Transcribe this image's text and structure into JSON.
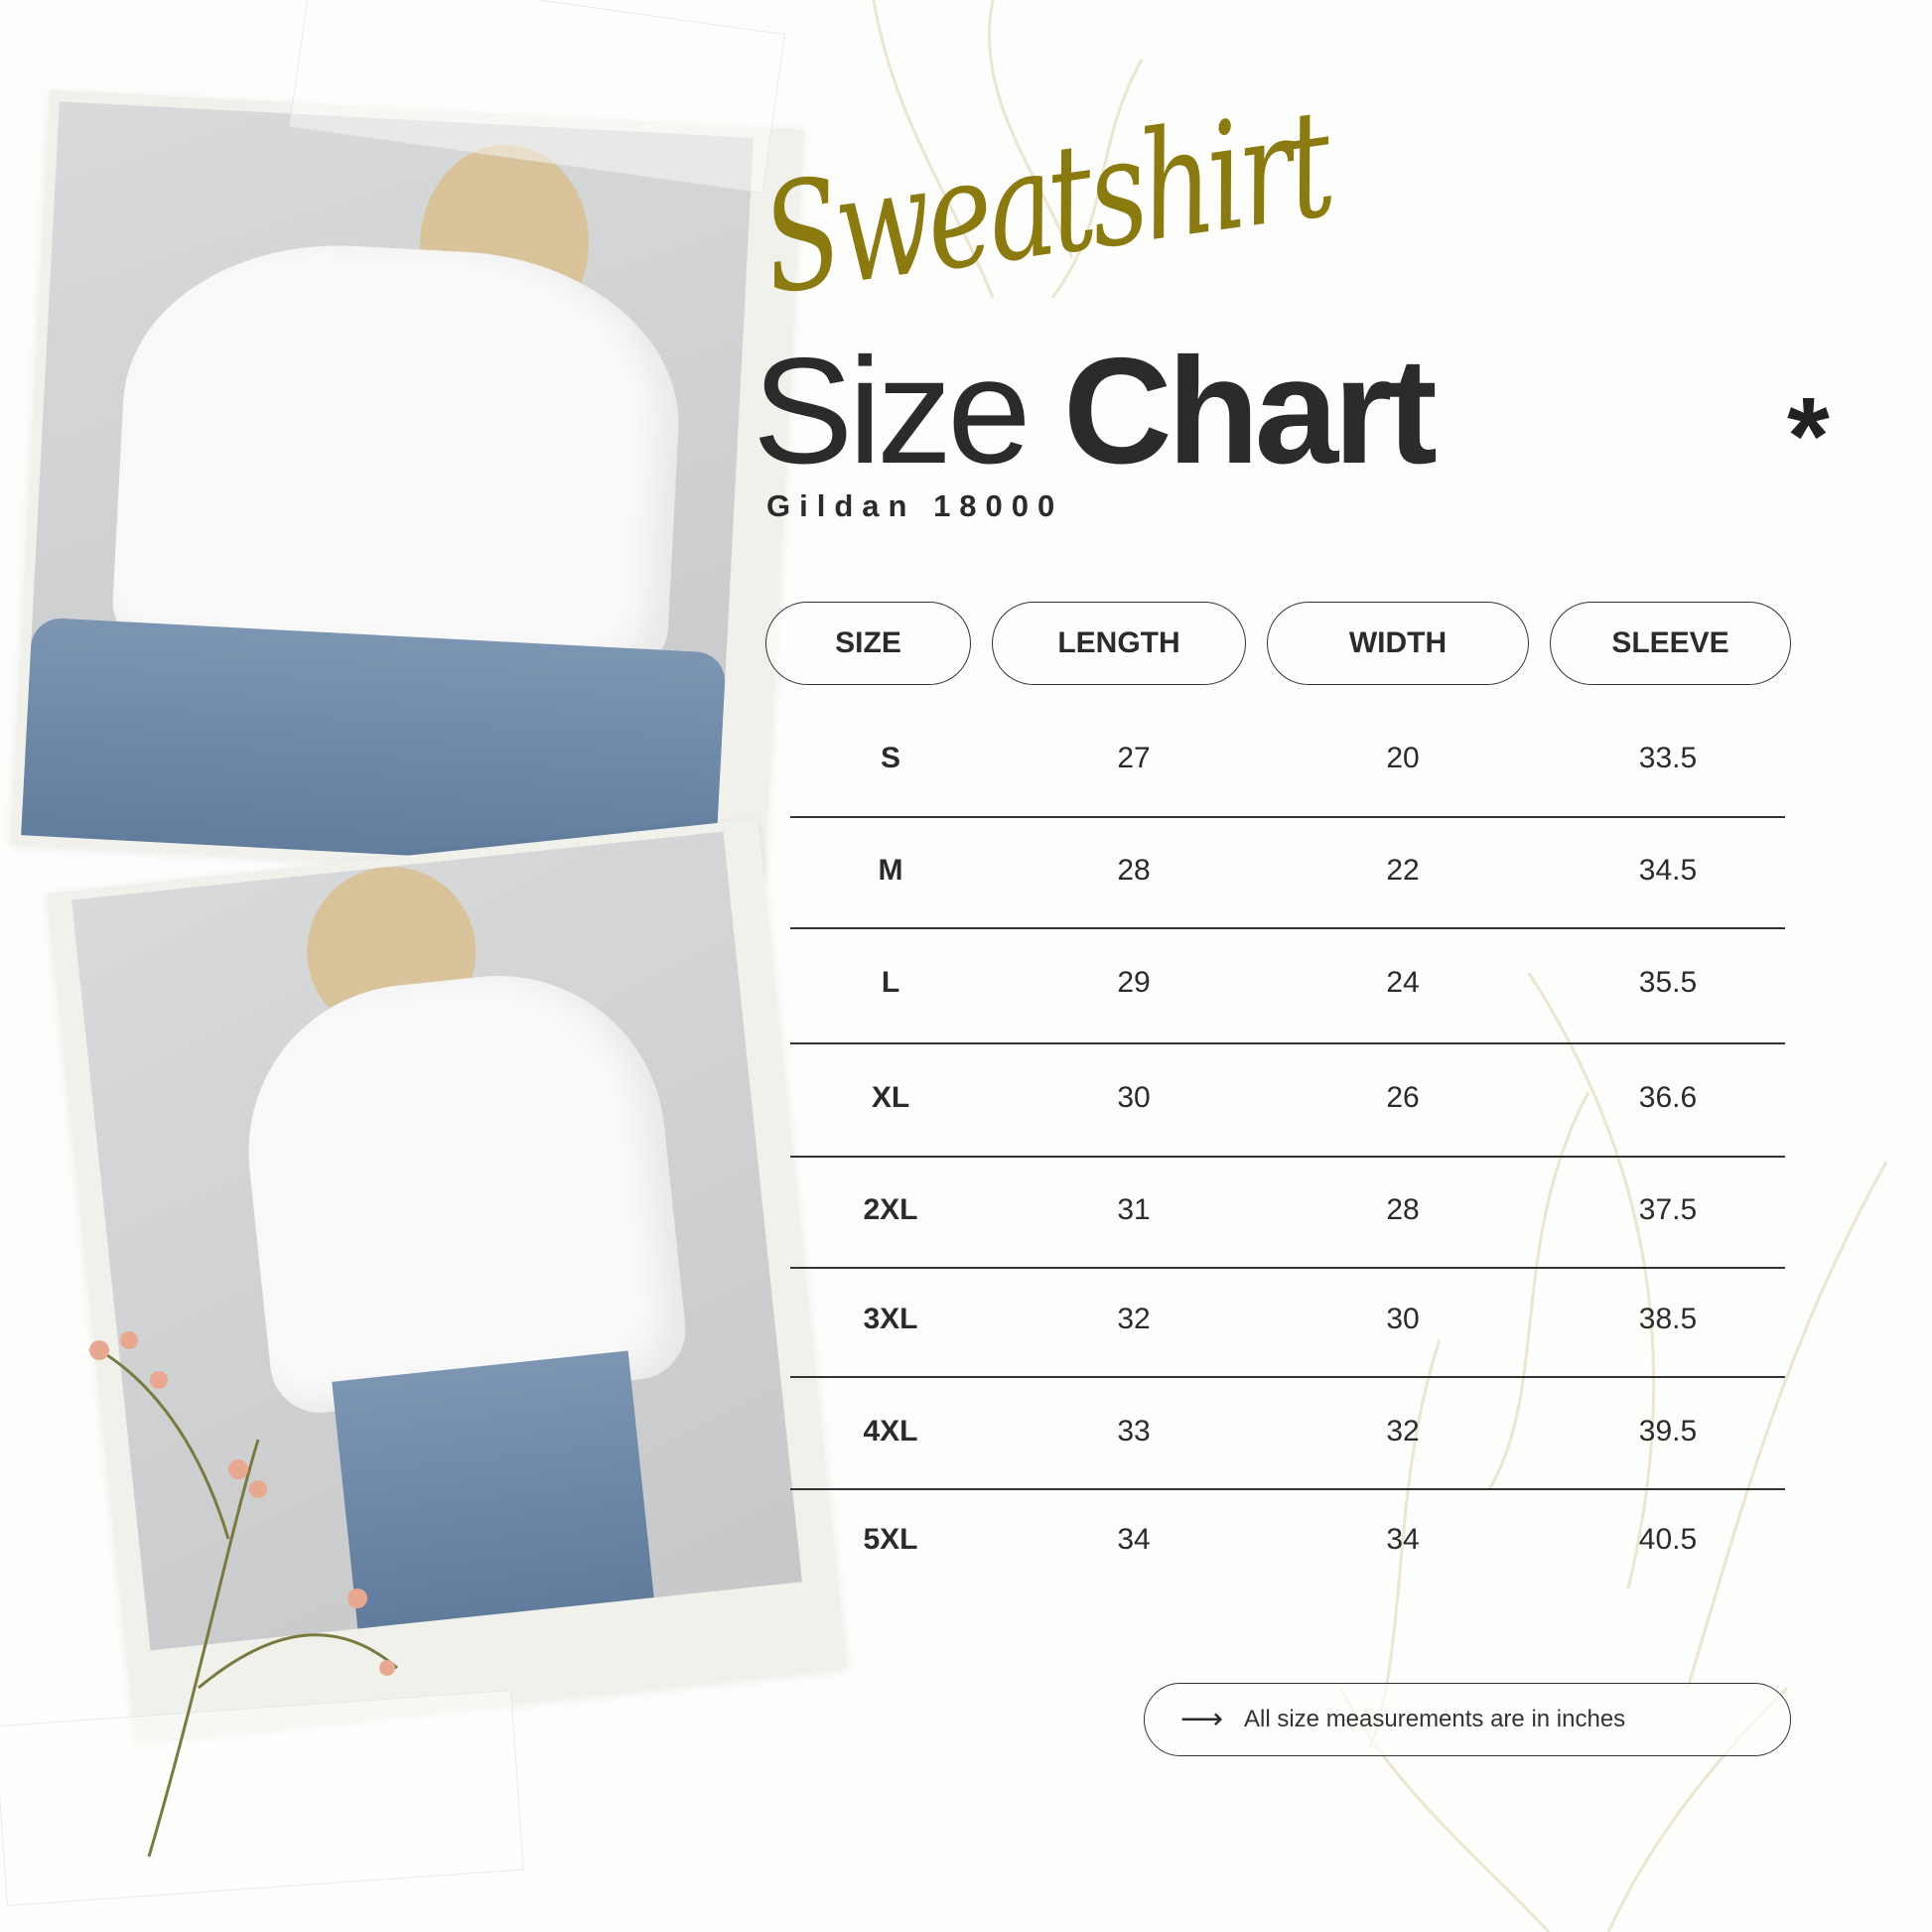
{
  "colors": {
    "accent": "#8a7a10",
    "text": "#2b2b2b",
    "background": "#fdfdfb",
    "leaf": "#ece6d0"
  },
  "header": {
    "script_title": "Sweatshirt",
    "title_light": "Size",
    "title_bold": "Chart",
    "subtitle": "Gildan 18000",
    "decor_icon": "asterisk-icon"
  },
  "table": {
    "columns": [
      "SIZE",
      "LENGTH",
      "WIDTH",
      "SLEEVE"
    ],
    "rows": [
      [
        "S",
        "27",
        "20",
        "33.5"
      ],
      [
        "M",
        "28",
        "22",
        "34.5"
      ],
      [
        "L",
        "29",
        "24",
        "35.5"
      ],
      [
        "XL",
        "30",
        "26",
        "36.6"
      ],
      [
        "2XL",
        "31",
        "28",
        "37.5"
      ],
      [
        "3XL",
        "32",
        "30",
        "38.5"
      ],
      [
        "4XL",
        "33",
        "32",
        "39.5"
      ],
      [
        "5XL",
        "34",
        "34",
        "40.5"
      ]
    ]
  },
  "footer": {
    "icon": "arrow-right-icon",
    "note": "All size measurements are in inches"
  }
}
